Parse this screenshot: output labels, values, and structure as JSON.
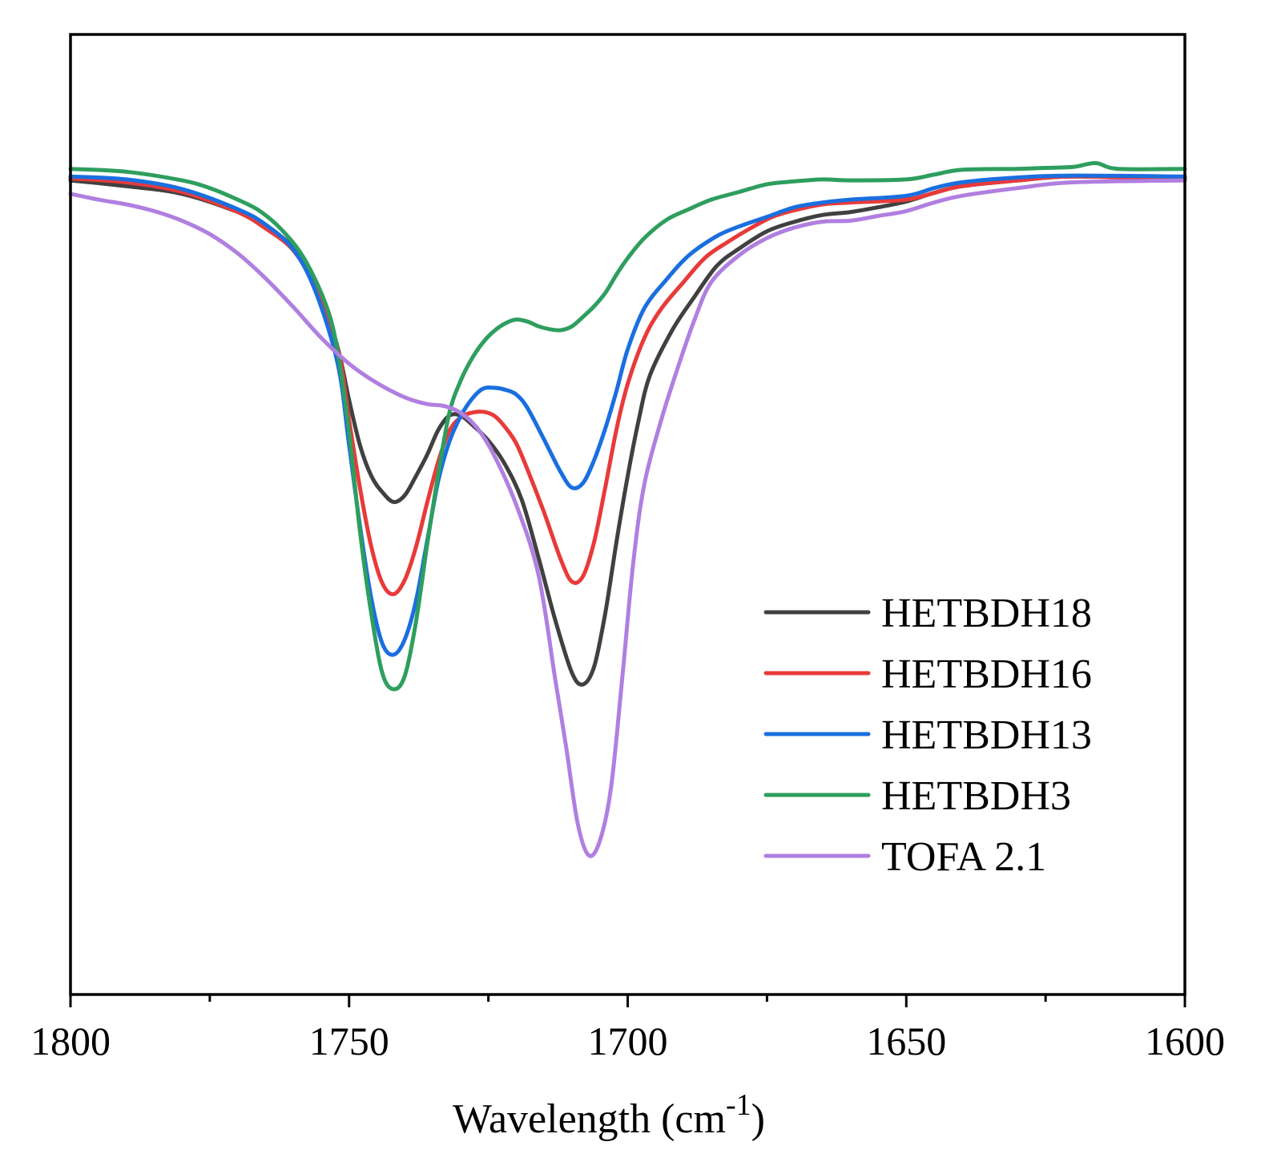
{
  "chart_data": {
    "type": "line",
    "title": "",
    "xlabel": "Wavelength (cm",
    "xlabel_superscript": "-1",
    "xlabel_suffix": ")",
    "ylabel": "",
    "xlim": [
      1800,
      1600
    ],
    "ylim": [
      0,
      100
    ],
    "x_ticks": [
      1800,
      1750,
      1700,
      1650,
      1600
    ],
    "x_tick_labels": [
      "1800",
      "1750",
      "1700",
      "1650",
      "1600"
    ],
    "x_minor_ticks": [
      1775,
      1725,
      1675,
      1625
    ],
    "legend_position": "right",
    "series": [
      {
        "name": "HETBDH18",
        "color": "#404040",
        "points": [
          [
            1800,
            84.8
          ],
          [
            1790,
            84.2
          ],
          [
            1780,
            83.4
          ],
          [
            1770,
            81.5
          ],
          [
            1765,
            80.0
          ],
          [
            1760,
            77.7
          ],
          [
            1755,
            72.5
          ],
          [
            1752,
            67.3
          ],
          [
            1750,
            61.9
          ],
          [
            1748,
            57.1
          ],
          [
            1746,
            54.0
          ],
          [
            1744,
            52.3
          ],
          [
            1742,
            51.3
          ],
          [
            1740,
            52.0
          ],
          [
            1738,
            54.0
          ],
          [
            1736,
            56.2
          ],
          [
            1734,
            58.8
          ],
          [
            1732,
            60.3
          ],
          [
            1730,
            60.3
          ],
          [
            1728,
            59.4
          ],
          [
            1725,
            57.7
          ],
          [
            1722,
            55.2
          ],
          [
            1719,
            51.5
          ],
          [
            1716,
            45.5
          ],
          [
            1713,
            39.0
          ],
          [
            1710,
            33.5
          ],
          [
            1708,
            32.3
          ],
          [
            1706,
            34.2
          ],
          [
            1704,
            39.8
          ],
          [
            1702,
            47.2
          ],
          [
            1700,
            54.0
          ],
          [
            1698,
            59.9
          ],
          [
            1696,
            64.5
          ],
          [
            1692,
            69.2
          ],
          [
            1688,
            72.7
          ],
          [
            1684,
            75.9
          ],
          [
            1680,
            77.7
          ],
          [
            1675,
            79.5
          ],
          [
            1670,
            80.5
          ],
          [
            1665,
            81.2
          ],
          [
            1660,
            81.5
          ],
          [
            1655,
            82.0
          ],
          [
            1650,
            82.6
          ],
          [
            1645,
            83.5
          ],
          [
            1640,
            84.2
          ],
          [
            1630,
            84.8
          ],
          [
            1620,
            85.2
          ],
          [
            1600,
            85.0
          ]
        ]
      },
      {
        "name": "HETBDH16",
        "color": "#e83a3a",
        "points": [
          [
            1800,
            85.0
          ],
          [
            1790,
            84.6
          ],
          [
            1780,
            83.6
          ],
          [
            1770,
            81.5
          ],
          [
            1765,
            79.8
          ],
          [
            1760,
            77.5
          ],
          [
            1756,
            73.6
          ],
          [
            1752,
            67.2
          ],
          [
            1750,
            59.8
          ],
          [
            1748,
            52.6
          ],
          [
            1746,
            46.6
          ],
          [
            1744,
            42.8
          ],
          [
            1742,
            41.7
          ],
          [
            1740,
            43.2
          ],
          [
            1738,
            46.6
          ],
          [
            1736,
            51.2
          ],
          [
            1734,
            55.5
          ],
          [
            1732,
            58.7
          ],
          [
            1730,
            60.1
          ],
          [
            1728,
            60.6
          ],
          [
            1726,
            60.7
          ],
          [
            1724,
            60.3
          ],
          [
            1722,
            59.1
          ],
          [
            1720,
            57.4
          ],
          [
            1718,
            54.7
          ],
          [
            1715,
            50.2
          ],
          [
            1712,
            45.3
          ],
          [
            1710,
            43.0
          ],
          [
            1708,
            43.6
          ],
          [
            1706,
            47.2
          ],
          [
            1704,
            52.9
          ],
          [
            1702,
            58.9
          ],
          [
            1700,
            63.6
          ],
          [
            1697,
            68.4
          ],
          [
            1694,
            71.4
          ],
          [
            1690,
            74.2
          ],
          [
            1686,
            76.8
          ],
          [
            1682,
            78.4
          ],
          [
            1678,
            79.8
          ],
          [
            1674,
            81.0
          ],
          [
            1670,
            81.7
          ],
          [
            1665,
            82.3
          ],
          [
            1660,
            82.5
          ],
          [
            1650,
            82.8
          ],
          [
            1645,
            83.5
          ],
          [
            1640,
            84.2
          ],
          [
            1630,
            84.8
          ],
          [
            1620,
            85.2
          ],
          [
            1600,
            84.9
          ]
        ]
      },
      {
        "name": "HETBDH13",
        "color": "#1a6fdf",
        "points": [
          [
            1800,
            85.2
          ],
          [
            1790,
            84.9
          ],
          [
            1780,
            83.9
          ],
          [
            1770,
            81.8
          ],
          [
            1765,
            80.2
          ],
          [
            1760,
            77.6
          ],
          [
            1756,
            73.2
          ],
          [
            1752,
            65.6
          ],
          [
            1750,
            57.2
          ],
          [
            1748,
            48.6
          ],
          [
            1746,
            41.2
          ],
          [
            1744,
            36.5
          ],
          [
            1742,
            35.4
          ],
          [
            1740,
            37.0
          ],
          [
            1738,
            41.0
          ],
          [
            1736,
            47.2
          ],
          [
            1734,
            53.5
          ],
          [
            1732,
            57.6
          ],
          [
            1730,
            60.2
          ],
          [
            1728,
            62.0
          ],
          [
            1726,
            63.1
          ],
          [
            1724,
            63.2
          ],
          [
            1722,
            63.0
          ],
          [
            1720,
            62.5
          ],
          [
            1718,
            61.1
          ],
          [
            1715,
            57.8
          ],
          [
            1712,
            54.4
          ],
          [
            1710,
            52.8
          ],
          [
            1708,
            53.3
          ],
          [
            1706,
            55.7
          ],
          [
            1704,
            59.0
          ],
          [
            1702,
            62.9
          ],
          [
            1700,
            67.2
          ],
          [
            1697,
            71.5
          ],
          [
            1693,
            74.5
          ],
          [
            1689,
            77.0
          ],
          [
            1684,
            79.0
          ],
          [
            1680,
            80.0
          ],
          [
            1675,
            81.0
          ],
          [
            1670,
            82.0
          ],
          [
            1665,
            82.5
          ],
          [
            1660,
            82.8
          ],
          [
            1650,
            83.2
          ],
          [
            1645,
            84.0
          ],
          [
            1640,
            84.6
          ],
          [
            1630,
            85.1
          ],
          [
            1620,
            85.3
          ],
          [
            1600,
            85.2
          ]
        ]
      },
      {
        "name": "HETBDH3",
        "color": "#2e9e5e",
        "points": [
          [
            1800,
            86.0
          ],
          [
            1790,
            85.7
          ],
          [
            1780,
            84.8
          ],
          [
            1775,
            84.0
          ],
          [
            1770,
            82.8
          ],
          [
            1766,
            81.6
          ],
          [
            1762,
            79.6
          ],
          [
            1758,
            76.6
          ],
          [
            1754,
            71.6
          ],
          [
            1752,
            66.8
          ],
          [
            1750,
            58.5
          ],
          [
            1748,
            48.0
          ],
          [
            1746,
            39.6
          ],
          [
            1744,
            33.4
          ],
          [
            1742,
            31.8
          ],
          [
            1740,
            33.2
          ],
          [
            1738,
            38.8
          ],
          [
            1736,
            46.8
          ],
          [
            1734,
            54.2
          ],
          [
            1732,
            60.6
          ],
          [
            1730,
            63.9
          ],
          [
            1728,
            66.2
          ],
          [
            1726,
            67.9
          ],
          [
            1724,
            69.1
          ],
          [
            1722,
            69.9
          ],
          [
            1720,
            70.3
          ],
          [
            1718,
            70.1
          ],
          [
            1716,
            69.6
          ],
          [
            1714,
            69.3
          ],
          [
            1712,
            69.2
          ],
          [
            1710,
            69.6
          ],
          [
            1708,
            70.6
          ],
          [
            1706,
            71.7
          ],
          [
            1704,
            73.1
          ],
          [
            1702,
            75.0
          ],
          [
            1700,
            76.7
          ],
          [
            1697,
            78.8
          ],
          [
            1693,
            80.7
          ],
          [
            1689,
            81.8
          ],
          [
            1685,
            82.8
          ],
          [
            1680,
            83.6
          ],
          [
            1675,
            84.4
          ],
          [
            1670,
            84.7
          ],
          [
            1665,
            84.9
          ],
          [
            1660,
            84.8
          ],
          [
            1650,
            84.9
          ],
          [
            1645,
            85.4
          ],
          [
            1640,
            85.9
          ],
          [
            1630,
            86.0
          ],
          [
            1625,
            86.1
          ],
          [
            1620,
            86.2
          ],
          [
            1616,
            86.6
          ],
          [
            1612,
            86.0
          ],
          [
            1600,
            86.0
          ]
        ]
      },
      {
        "name": "TOFA 2.1",
        "color": "#b07fe0",
        "points": [
          [
            1800,
            83.4
          ],
          [
            1795,
            82.8
          ],
          [
            1790,
            82.3
          ],
          [
            1785,
            81.6
          ],
          [
            1780,
            80.6
          ],
          [
            1775,
            79.2
          ],
          [
            1770,
            77.2
          ],
          [
            1765,
            74.6
          ],
          [
            1760,
            71.6
          ],
          [
            1755,
            68.4
          ],
          [
            1750,
            65.7
          ],
          [
            1745,
            63.7
          ],
          [
            1740,
            62.2
          ],
          [
            1736,
            61.5
          ],
          [
            1733,
            61.3
          ],
          [
            1730,
            60.6
          ],
          [
            1727,
            59.0
          ],
          [
            1724,
            56.2
          ],
          [
            1720,
            51.0
          ],
          [
            1716,
            43.7
          ],
          [
            1713,
            32.8
          ],
          [
            1711,
            25.6
          ],
          [
            1709,
            17.9
          ],
          [
            1707,
            14.5
          ],
          [
            1705,
            16.0
          ],
          [
            1703,
            21.5
          ],
          [
            1701,
            32.8
          ],
          [
            1699,
            45.0
          ],
          [
            1697,
            53.2
          ],
          [
            1694,
            59.8
          ],
          [
            1691,
            65.3
          ],
          [
            1688,
            70.3
          ],
          [
            1685,
            74.2
          ],
          [
            1680,
            77.0
          ],
          [
            1675,
            78.8
          ],
          [
            1670,
            79.9
          ],
          [
            1665,
            80.5
          ],
          [
            1660,
            80.6
          ],
          [
            1655,
            81.1
          ],
          [
            1650,
            81.6
          ],
          [
            1645,
            82.5
          ],
          [
            1640,
            83.2
          ],
          [
            1630,
            84.0
          ],
          [
            1620,
            84.6
          ],
          [
            1600,
            84.8
          ]
        ]
      }
    ]
  }
}
